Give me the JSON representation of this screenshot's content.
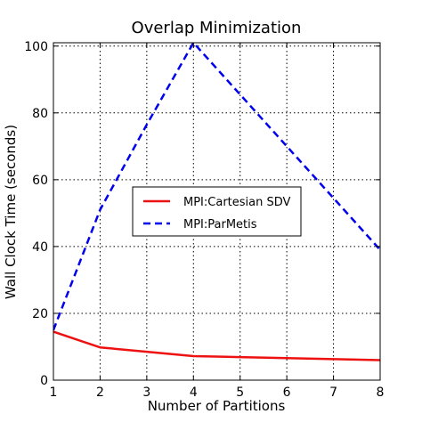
{
  "chart_data": {
    "type": "line",
    "title": "Overlap Minimization",
    "xlabel": "Number of Partitions",
    "ylabel": "Wall Clock Time (seconds)",
    "x": [
      1,
      2,
      3,
      4,
      5,
      6,
      7,
      8
    ],
    "xlim": [
      1,
      8
    ],
    "ylim": [
      0,
      101
    ],
    "x_ticks": [
      1,
      2,
      3,
      4,
      5,
      6,
      7,
      8
    ],
    "y_ticks": [
      0,
      20,
      40,
      60,
      80,
      100
    ],
    "grid": true,
    "legend_placement": "center-left",
    "series": [
      {
        "name": "MPI:Cartesian SDV",
        "color": "#ee1111",
        "style": "solid",
        "values": [
          14.5,
          9.8,
          8.5,
          7.2,
          6.9,
          6.6,
          6.3,
          6.0
        ]
      },
      {
        "name": "MPI:ParMetis",
        "color": "#0000ee",
        "style": "dashed",
        "values": [
          15.0,
          51.0,
          76.5,
          101.0,
          85.5,
          70.0,
          54.5,
          39.0
        ]
      }
    ]
  }
}
